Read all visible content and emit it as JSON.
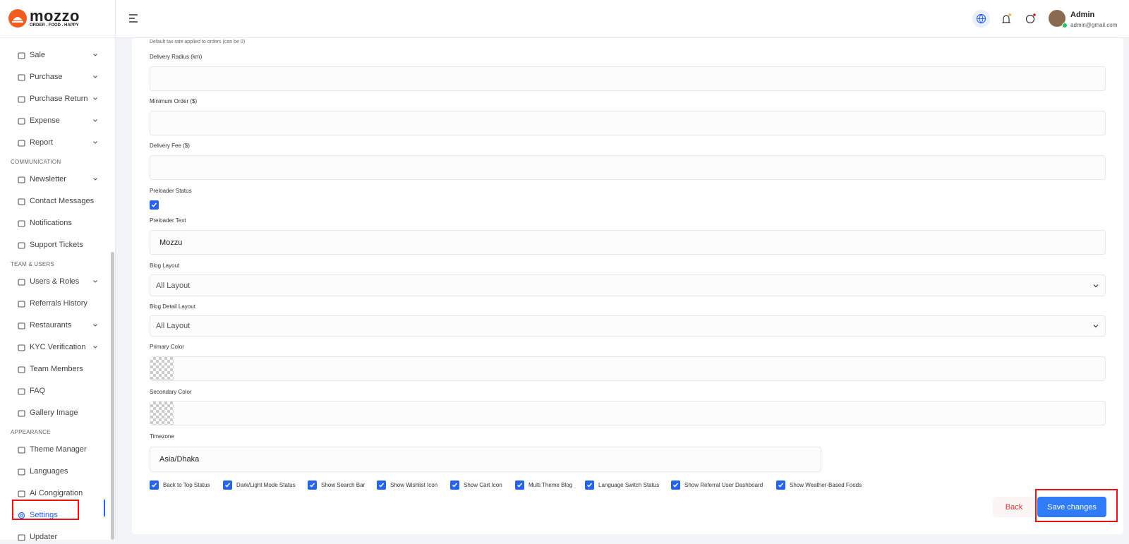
{
  "brand": {
    "name": "mozzo",
    "tagline": "ORDER . FOOD . HAPPY"
  },
  "sidebar": {
    "groups": [
      {
        "items": [
          {
            "label": "Sale",
            "expandable": true
          },
          {
            "label": "Purchase",
            "expandable": true
          },
          {
            "label": "Purchase Return",
            "expandable": true
          },
          {
            "label": "Expense",
            "expandable": true
          },
          {
            "label": "Report",
            "expandable": true
          }
        ]
      },
      {
        "title": "COMMUNICATION",
        "items": [
          {
            "label": "Newsletter",
            "expandable": true
          },
          {
            "label": "Contact Messages"
          },
          {
            "label": "Notifications"
          },
          {
            "label": "Support Tickets"
          }
        ]
      },
      {
        "title": "TEAM & USERS",
        "items": [
          {
            "label": "Users & Roles",
            "expandable": true
          },
          {
            "label": "Referrals History"
          },
          {
            "label": "Restaurants",
            "expandable": true
          },
          {
            "label": "KYC Verification",
            "expandable": true
          },
          {
            "label": "Team Members"
          },
          {
            "label": "FAQ"
          },
          {
            "label": "Gallery Image"
          }
        ]
      },
      {
        "title": "APPEARANCE",
        "items": [
          {
            "label": "Theme Manager"
          },
          {
            "label": "Languages"
          },
          {
            "label": "Ai Congigration"
          },
          {
            "label": "Settings",
            "active": true
          },
          {
            "label": "Updater"
          }
        ]
      }
    ]
  },
  "header": {
    "user": {
      "name": "Admin",
      "email": "admin@gmail.com"
    }
  },
  "form": {
    "hint": "Default tax rate applied to orders (can be 0)",
    "fields": [
      {
        "label": "Delivery Radius (km)",
        "type": "text"
      },
      {
        "label": "Minimum Order ($)",
        "type": "text"
      },
      {
        "label": "Delivery Fee ($)",
        "type": "text"
      },
      {
        "label": "Preloader Status",
        "type": "checkbox",
        "checked": true
      },
      {
        "label": "Preloader Text",
        "type": "text",
        "value": "Mozzu"
      },
      {
        "label": "Blog Layout",
        "type": "select",
        "value": "All Layout"
      },
      {
        "label": "Blog Detail Layout",
        "type": "select",
        "value": "All Layout"
      },
      {
        "label": "Primary Color",
        "type": "color"
      },
      {
        "label": "Secondary Color",
        "type": "color"
      },
      {
        "label": "Timezone",
        "type": "text",
        "value": "Asia/Dhaka"
      }
    ],
    "toggles": [
      {
        "label": "Back to Top Status",
        "checked": true
      },
      {
        "label": "Dark/Light Mode Status",
        "checked": true
      },
      {
        "label": "Show Search Bar",
        "checked": true
      },
      {
        "label": "Show Wishlist Icon",
        "checked": true
      },
      {
        "label": "Show Cart Icon",
        "checked": true
      },
      {
        "label": "Multi Theme Blog",
        "checked": true
      },
      {
        "label": "Language Switch Status",
        "checked": true
      },
      {
        "label": "Show Referral User Dashboard",
        "checked": true
      },
      {
        "label": "Show Weather-Based Foods",
        "checked": true
      }
    ],
    "buttons": {
      "back": "Back",
      "save": "Save changes"
    }
  }
}
